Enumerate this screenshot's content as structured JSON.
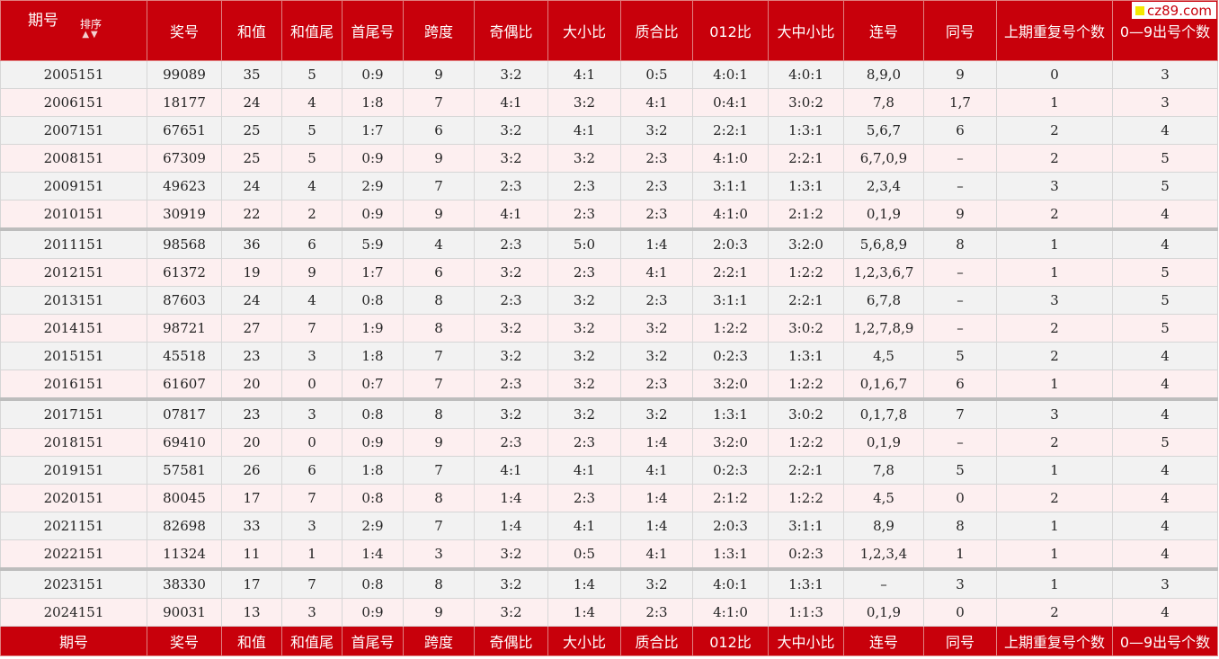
{
  "logo": {
    "text": "cz89.com"
  },
  "header": {
    "qihao": "期号",
    "sort_label": "排序",
    "sort_arrows": "▲▼",
    "columns": [
      "奖号",
      "和值",
      "和值尾",
      "首尾号",
      "跨度",
      "奇偶比",
      "大小比",
      "质合比",
      "012比",
      "大中小比",
      "连号",
      "同号",
      "上期重复号个数",
      "0—9出号个数"
    ]
  },
  "footer": {
    "columns": [
      "期号",
      "奖号",
      "和值",
      "和值尾",
      "首尾号",
      "跨度",
      "奇偶比",
      "大小比",
      "质合比",
      "012比",
      "大中小比",
      "连号",
      "同号",
      "上期重复号个数",
      "0—9出号个数"
    ]
  },
  "rows": [
    [
      "2005151",
      "99089",
      "35",
      "5",
      "0:9",
      "9",
      "3:2",
      "4:1",
      "0:5",
      "4:0:1",
      "4:0:1",
      "8,9,0",
      "9",
      "0",
      "3"
    ],
    [
      "2006151",
      "18177",
      "24",
      "4",
      "1:8",
      "7",
      "4:1",
      "3:2",
      "4:1",
      "0:4:1",
      "3:0:2",
      "7,8",
      "1,7",
      "1",
      "3"
    ],
    [
      "2007151",
      "67651",
      "25",
      "5",
      "1:7",
      "6",
      "3:2",
      "4:1",
      "3:2",
      "2:2:1",
      "1:3:1",
      "5,6,7",
      "6",
      "2",
      "4"
    ],
    [
      "2008151",
      "67309",
      "25",
      "5",
      "0:9",
      "9",
      "3:2",
      "3:2",
      "2:3",
      "4:1:0",
      "2:2:1",
      "6,7,0,9",
      "–",
      "2",
      "5"
    ],
    [
      "2009151",
      "49623",
      "24",
      "4",
      "2:9",
      "7",
      "2:3",
      "2:3",
      "2:3",
      "3:1:1",
      "1:3:1",
      "2,3,4",
      "–",
      "3",
      "5"
    ],
    [
      "2010151",
      "30919",
      "22",
      "2",
      "0:9",
      "9",
      "4:1",
      "2:3",
      "2:3",
      "4:1:0",
      "2:1:2",
      "0,1,9",
      "9",
      "2",
      "4"
    ],
    [
      "2011151",
      "98568",
      "36",
      "6",
      "5:9",
      "4",
      "2:3",
      "5:0",
      "1:4",
      "2:0:3",
      "3:2:0",
      "5,6,8,9",
      "8",
      "1",
      "4"
    ],
    [
      "2012151",
      "61372",
      "19",
      "9",
      "1:7",
      "6",
      "3:2",
      "2:3",
      "4:1",
      "2:2:1",
      "1:2:2",
      "1,2,3,6,7",
      "–",
      "1",
      "5"
    ],
    [
      "2013151",
      "87603",
      "24",
      "4",
      "0:8",
      "8",
      "2:3",
      "3:2",
      "2:3",
      "3:1:1",
      "2:2:1",
      "6,7,8",
      "–",
      "3",
      "5"
    ],
    [
      "2014151",
      "98721",
      "27",
      "7",
      "1:9",
      "8",
      "3:2",
      "3:2",
      "3:2",
      "1:2:2",
      "3:0:2",
      "1,2,7,8,9",
      "–",
      "2",
      "5"
    ],
    [
      "2015151",
      "45518",
      "23",
      "3",
      "1:8",
      "7",
      "3:2",
      "3:2",
      "3:2",
      "0:2:3",
      "1:3:1",
      "4,5",
      "5",
      "2",
      "4"
    ],
    [
      "2016151",
      "61607",
      "20",
      "0",
      "0:7",
      "7",
      "2:3",
      "3:2",
      "2:3",
      "3:2:0",
      "1:2:2",
      "0,1,6,7",
      "6",
      "1",
      "4"
    ],
    [
      "2017151",
      "07817",
      "23",
      "3",
      "0:8",
      "8",
      "3:2",
      "3:2",
      "3:2",
      "1:3:1",
      "3:0:2",
      "0,1,7,8",
      "7",
      "3",
      "4"
    ],
    [
      "2018151",
      "69410",
      "20",
      "0",
      "0:9",
      "9",
      "2:3",
      "2:3",
      "1:4",
      "3:2:0",
      "1:2:2",
      "0,1,9",
      "–",
      "2",
      "5"
    ],
    [
      "2019151",
      "57581",
      "26",
      "6",
      "1:8",
      "7",
      "4:1",
      "4:1",
      "4:1",
      "0:2:3",
      "2:2:1",
      "7,8",
      "5",
      "1",
      "4"
    ],
    [
      "2020151",
      "80045",
      "17",
      "7",
      "0:8",
      "8",
      "1:4",
      "2:3",
      "1:4",
      "2:1:2",
      "1:2:2",
      "4,5",
      "0",
      "2",
      "4"
    ],
    [
      "2021151",
      "82698",
      "33",
      "3",
      "2:9",
      "7",
      "1:4",
      "4:1",
      "1:4",
      "2:0:3",
      "3:1:1",
      "8,9",
      "8",
      "1",
      "4"
    ],
    [
      "2022151",
      "11324",
      "11",
      "1",
      "1:4",
      "3",
      "3:2",
      "0:5",
      "4:1",
      "1:3:1",
      "0:2:3",
      "1,2,3,4",
      "1",
      "1",
      "4"
    ],
    [
      "2023151",
      "38330",
      "17",
      "7",
      "0:8",
      "8",
      "3:2",
      "1:4",
      "3:2",
      "4:0:1",
      "1:3:1",
      "–",
      "3",
      "1",
      "3"
    ],
    [
      "2024151",
      "90031",
      "13",
      "3",
      "0:9",
      "9",
      "3:2",
      "1:4",
      "2:3",
      "4:1:0",
      "1:1:3",
      "0,1,9",
      "0",
      "2",
      "4"
    ]
  ],
  "group_first_rows": [
    6,
    12,
    18
  ]
}
